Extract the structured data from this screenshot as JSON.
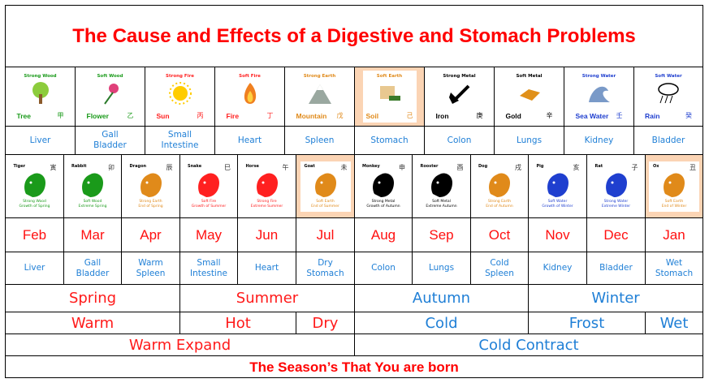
{
  "title": "The Cause and Effects of a Digestive and Stomach Problems",
  "colors": {
    "red": "#ff0000",
    "blue": "#1f7fd6",
    "highlight": "#fbd4b4",
    "wood": "#1a9a1a",
    "fire": "#ff2020",
    "earth": "#e08a1a",
    "metal": "#000000",
    "water": "#1f3fcf"
  },
  "elements": [
    {
      "type": "Strong Wood",
      "name": "Tree",
      "char": "甲",
      "organ": "Liver",
      "kind": "wood",
      "icon": "tree-icon"
    },
    {
      "type": "Soft Wood",
      "name": "Flower",
      "char": "乙",
      "organ": "Gall Bladder",
      "kind": "wood",
      "icon": "flower-icon"
    },
    {
      "type": "Strong Fire",
      "name": "Sun",
      "char": "丙",
      "organ": "Small Intestine",
      "kind": "fire",
      "icon": "sun-icon"
    },
    {
      "type": "Soft Fire",
      "name": "Fire",
      "char": "丁",
      "organ": "Heart",
      "kind": "fire",
      "icon": "fire-icon"
    },
    {
      "type": "Strong Earth",
      "name": "Mountain",
      "char": "戊",
      "organ": "Spleen",
      "kind": "earth",
      "icon": "mountain-icon"
    },
    {
      "type": "Soft Earth",
      "name": "Soil",
      "char": "己",
      "organ": "Stomach",
      "kind": "earth",
      "icon": "soil-icon",
      "highlight": true
    },
    {
      "type": "Strong Metal",
      "name": "Iron",
      "char": "庚",
      "organ": "Colon",
      "kind": "metal",
      "icon": "axe-icon"
    },
    {
      "type": "Soft Metal",
      "name": "Gold",
      "char": "辛",
      "organ": "Lungs",
      "kind": "metal",
      "icon": "gold-bar-icon"
    },
    {
      "type": "Strong Water",
      "name": "Sea Water",
      "char": "壬",
      "organ": "Kidney",
      "kind": "water",
      "icon": "wave-icon"
    },
    {
      "type": "Soft Water",
      "name": "Rain",
      "char": "癸",
      "organ": "Bladder",
      "kind": "water",
      "icon": "rain-cloud-icon"
    }
  ],
  "months": [
    {
      "animal": "Tiger",
      "char": "寅",
      "desc1": "Strong Wood",
      "desc2": "Growth of Spring",
      "kind": "wood",
      "month": "Feb",
      "organ": "Liver"
    },
    {
      "animal": "Rabbit",
      "char": "卯",
      "desc1": "Soft Wood",
      "desc2": "Extreme Spring",
      "kind": "wood",
      "month": "Mar",
      "organ": "Gall Bladder"
    },
    {
      "animal": "Dragon",
      "char": "辰",
      "desc1": "Strong Earth",
      "desc2": "End of Spring",
      "kind": "earth",
      "month": "Apr",
      "organ": "Warm Spleen"
    },
    {
      "animal": "Snake",
      "char": "巳",
      "desc1": "Soft Fire",
      "desc2": "Growth of Summer",
      "kind": "fire",
      "month": "May",
      "organ": "Small Intestine"
    },
    {
      "animal": "Horse",
      "char": "午",
      "desc1": "Strong Fire",
      "desc2": "Extreme Summer",
      "kind": "fire",
      "month": "Jun",
      "organ": "Heart"
    },
    {
      "animal": "Goat",
      "char": "未",
      "desc1": "Soft Earth",
      "desc2": "End of Summer",
      "kind": "earth",
      "month": "Jul",
      "organ": "Dry Stomach",
      "highlight": true
    },
    {
      "animal": "Monkey",
      "char": "申",
      "desc1": "Strong Metal",
      "desc2": "Growth of Autumn",
      "kind": "metal",
      "month": "Aug",
      "organ": "Colon"
    },
    {
      "animal": "Rooster",
      "char": "酉",
      "desc1": "Soft Metal",
      "desc2": "Extreme Autumn",
      "kind": "metal",
      "month": "Sep",
      "organ": "Lungs"
    },
    {
      "animal": "Dog",
      "char": "戌",
      "desc1": "Strong Earth",
      "desc2": "End of Autumn",
      "kind": "earth",
      "month": "Oct",
      "organ": "Cold Spleen"
    },
    {
      "animal": "Pig",
      "char": "亥",
      "desc1": "Soft Water",
      "desc2": "Growth of Winter",
      "kind": "water",
      "month": "Nov",
      "organ": "Kidney"
    },
    {
      "animal": "Rat",
      "char": "子",
      "desc1": "Strong Water",
      "desc2": "Extreme Winter",
      "kind": "water",
      "month": "Dec",
      "organ": "Bladder"
    },
    {
      "animal": "Ox",
      "char": "丑",
      "desc1": "Soft Earth",
      "desc2": "End of Winter",
      "kind": "earth",
      "month": "Jan",
      "organ": "Wet Stomach",
      "highlight": true
    }
  ],
  "seasons": [
    {
      "label": "Spring",
      "span": 3,
      "tone": "red"
    },
    {
      "label": "Summer",
      "span": 3,
      "tone": "red"
    },
    {
      "label": "Autumn",
      "span": 3,
      "tone": "blue"
    },
    {
      "label": "Winter",
      "span": 3,
      "tone": "blue"
    }
  ],
  "climate": [
    {
      "label": "Warm",
      "span": 3,
      "tone": "red"
    },
    {
      "label": "Hot",
      "span": 2,
      "tone": "red"
    },
    {
      "label": "Dry",
      "span": 1,
      "tone": "red"
    },
    {
      "label": "Cold",
      "span": 3,
      "tone": "blue"
    },
    {
      "label": "Frost",
      "span": 2,
      "tone": "blue"
    },
    {
      "label": "Wet",
      "span": 1,
      "tone": "blue"
    }
  ],
  "expansion": [
    {
      "label": "Warm Expand",
      "span": 6,
      "tone": "red"
    },
    {
      "label": "Cold Contract",
      "span": 6,
      "tone": "blue"
    }
  ],
  "footer": "The Season’s That You are born"
}
